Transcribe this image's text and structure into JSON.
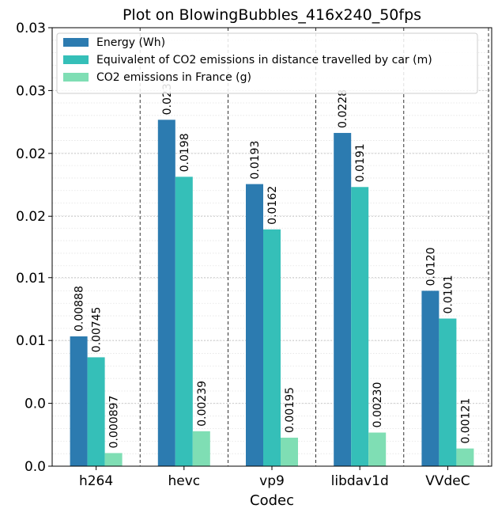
{
  "chart_data": {
    "type": "bar",
    "title": "Plot on BlowingBubbles_416x240_50fps",
    "x_label": "Codec",
    "categories": [
      "h264",
      "hevc",
      "vp9",
      "libdav1d",
      "VVdeC"
    ],
    "series": [
      {
        "name": "Energy (Wh)",
        "color": "#2c7bb0",
        "values": [
          0.00888,
          0.0237,
          0.0193,
          0.0228,
          0.012
        ],
        "value_labels": [
          "0.00888",
          "0.0237",
          "0.0193",
          "0.0228",
          "0.0120"
        ]
      },
      {
        "name": "Equivalent of CO2 emissions in distance travelled by car (m)",
        "color": "#35bfb8",
        "values": [
          0.00745,
          0.0198,
          0.0162,
          0.0191,
          0.0101
        ],
        "value_labels": [
          "0.00745",
          "0.0198",
          "0.0162",
          "0.0191",
          "0.0101"
        ]
      },
      {
        "name": "CO2 emissions in France (g)",
        "color": "#7fdeb4",
        "values": [
          0.000897,
          0.00239,
          0.00195,
          0.0023,
          0.00121
        ],
        "value_labels": [
          "0.000897",
          "0.00239",
          "0.00195",
          "0.00230",
          "0.00121"
        ]
      }
    ],
    "ylim": [
      0,
      0.03
    ],
    "yticks": [
      {
        "value": 0,
        "label": "0.0"
      },
      {
        "value": 0.0043,
        "label": "0.0"
      },
      {
        "value": 0.0086,
        "label": "0.01"
      },
      {
        "value": 0.0129,
        "label": "0.01"
      },
      {
        "value": 0.0171,
        "label": "0.02"
      },
      {
        "value": 0.0214,
        "label": "0.02"
      },
      {
        "value": 0.0257,
        "label": "0.03"
      },
      {
        "value": 0.03,
        "label": "0.03"
      }
    ],
    "grid": true,
    "legend": "upper left"
  }
}
